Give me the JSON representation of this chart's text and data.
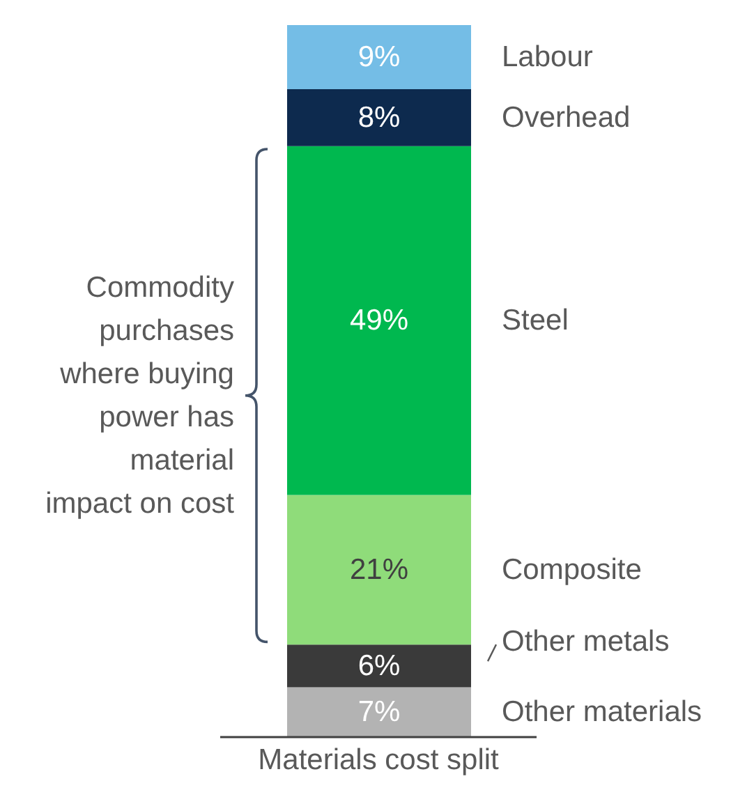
{
  "chart_data": {
    "type": "bar",
    "stacked": true,
    "categories": [
      "Materials cost split"
    ],
    "series": [
      {
        "name": "Other materials",
        "color": "#b3b3b3",
        "values": [
          7
        ],
        "value_labels": [
          "7%"
        ]
      },
      {
        "name": "Other metals",
        "color": "#3a3a3a",
        "values": [
          6
        ],
        "value_labels": [
          "6%"
        ]
      },
      {
        "name": "Composite",
        "color": "#8fdc7a",
        "values": [
          21
        ],
        "value_labels": [
          "21%"
        ]
      },
      {
        "name": "Steel",
        "color": "#00b84f",
        "values": [
          49
        ],
        "value_labels": [
          "49%"
        ]
      },
      {
        "name": "Overhead",
        "color": "#0d2a4e",
        "values": [
          8
        ],
        "value_labels": [
          "8%"
        ]
      },
      {
        "name": "Labour",
        "color": "#74bde6",
        "values": [
          9
        ],
        "value_labels": [
          "9%"
        ]
      }
    ],
    "annotations": [
      "Commodity purchases where buying power has material impact on cost"
    ]
  }
}
